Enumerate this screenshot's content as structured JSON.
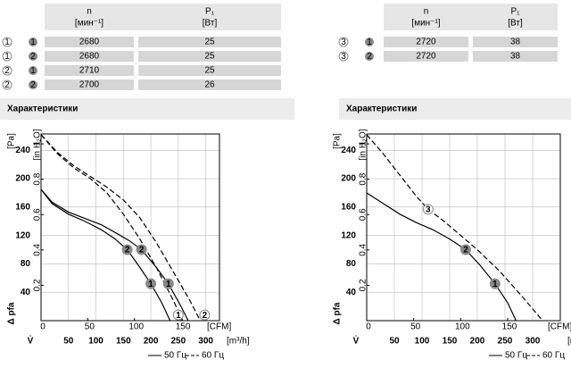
{
  "panels": [
    {
      "table": {
        "headers": [
          {
            "symbol": "n",
            "unit": "[мин⁻¹]"
          },
          {
            "symbol": "P₁",
            "unit": "[Вт]"
          }
        ],
        "rows": [
          {
            "curve": "1",
            "variant": "1",
            "n": "2680",
            "p": "25"
          },
          {
            "curve": "1",
            "variant": "2",
            "n": "2680",
            "p": "25"
          },
          {
            "curve": "2",
            "variant": "1",
            "n": "2710",
            "p": "25"
          },
          {
            "curve": "2",
            "variant": "2",
            "n": "2700",
            "p": "26"
          }
        ]
      },
      "section_title": "Характеристики"
    },
    {
      "table": {
        "headers": [
          {
            "symbol": "n",
            "unit": "[мин⁻¹]"
          },
          {
            "symbol": "P₁",
            "unit": "[Вт]"
          }
        ],
        "rows": [
          {
            "curve": "3",
            "variant": "1",
            "n": "2720",
            "p": "38"
          },
          {
            "curve": "3",
            "variant": "2",
            "n": "2720",
            "p": "38"
          }
        ]
      },
      "section_title": "Характеристики"
    }
  ],
  "chart_data": [
    {
      "type": "line",
      "xlim": [
        0,
        325
      ],
      "ylim": [
        0,
        263
      ],
      "xticks": [
        50,
        100,
        150,
        200,
        250,
        300
      ],
      "yticks": [
        40,
        80,
        120,
        160,
        200,
        240
      ],
      "x2lim": [
        0,
        191
      ],
      "x2ticks": [
        0,
        50,
        100,
        150
      ],
      "y2lim": [
        0,
        1.056
      ],
      "y2ticks": [
        0.2,
        0.4,
        0.6,
        0.8,
        1.0
      ],
      "ylabel": "[Pa]",
      "y2label": "[in H₂O]",
      "pressure_label": "Δ pfa",
      "xlabel": "V̇",
      "xunit": "[m³/h]",
      "x2unit": "[CFM]",
      "grid": true,
      "legend": [
        "50 Гц",
        "60 Гц"
      ],
      "series": [
        {
          "style": "solid",
          "color": "#000000",
          "x": [
            0,
            20,
            50,
            80,
            110,
            135,
            157,
            180,
            200,
            220,
            235
          ],
          "values": [
            185,
            165,
            150,
            140,
            128,
            115,
            100,
            75,
            52,
            25,
            0
          ]
        },
        {
          "style": "solid",
          "color": "#000000",
          "x": [
            0,
            20,
            50,
            80,
            110,
            140,
            160,
            183,
            210,
            232,
            255,
            268
          ],
          "values": [
            185,
            167,
            153,
            144,
            135,
            122,
            113,
            100,
            75,
            52,
            20,
            0
          ]
        },
        {
          "style": "dashed",
          "color": "#000000",
          "x": [
            0,
            30,
            60,
            90,
            120,
            150,
            180,
            210,
            240,
            258
          ],
          "values": [
            262,
            235,
            215,
            200,
            180,
            150,
            115,
            75,
            30,
            0
          ]
        },
        {
          "style": "dashed",
          "color": "#000000",
          "x": [
            0,
            30,
            60,
            90,
            120,
            150,
            180,
            210,
            240,
            270,
            290
          ],
          "values": [
            262,
            237,
            218,
            203,
            188,
            170,
            145,
            110,
            70,
            30,
            0
          ]
        }
      ],
      "annotations": [
        {
          "text": "2",
          "x": 157,
          "y": 100,
          "style": "filled"
        },
        {
          "text": "2",
          "x": 183,
          "y": 100,
          "style": "filled"
        },
        {
          "text": "1",
          "x": 200,
          "y": 52,
          "style": "filled"
        },
        {
          "text": "1",
          "x": 232,
          "y": 52,
          "style": "filled"
        },
        {
          "text": "1",
          "x": 250,
          "y": 8,
          "style": "outline"
        },
        {
          "text": "2",
          "x": 298,
          "y": 8,
          "style": "outline"
        }
      ]
    },
    {
      "type": "line",
      "xlim": [
        0,
        350
      ],
      "ylim": [
        0,
        263
      ],
      "xticks": [
        50,
        100,
        150,
        200,
        250,
        300
      ],
      "yticks": [
        40,
        80,
        120,
        160,
        200,
        240
      ],
      "x2lim": [
        0,
        206
      ],
      "x2ticks": [
        0,
        50,
        100,
        150
      ],
      "y2lim": [
        0,
        1.056
      ],
      "y2ticks": [
        0.2,
        0.4,
        0.6,
        0.8,
        1.0
      ],
      "ylabel": "[Pa]",
      "y2label": "[in H₂O]",
      "pressure_label": "Δ pfa",
      "xlabel": "V̇",
      "xunit": "[m³/h]",
      "x2unit": "[CFM]",
      "grid": true,
      "legend": [
        "50 Гц",
        "60 Гц"
      ],
      "series": [
        {
          "style": "solid",
          "color": "#000000",
          "x": [
            0,
            30,
            60,
            90,
            120,
            150,
            179,
            205,
            232,
            255,
            270
          ],
          "values": [
            180,
            165,
            150,
            138,
            128,
            115,
            100,
            78,
            52,
            25,
            0
          ]
        },
        {
          "style": "dashed",
          "color": "#000000",
          "x": [
            0,
            30,
            60,
            90,
            111,
            140,
            170,
            200,
            240,
            280,
            318
          ],
          "values": [
            262,
            235,
            205,
            175,
            157,
            140,
            120,
            100,
            70,
            35,
            0
          ]
        }
      ],
      "annotations": [
        {
          "text": "3",
          "x": 111,
          "y": 157,
          "style": "outline"
        },
        {
          "text": "2",
          "x": 179,
          "y": 100,
          "style": "filled"
        },
        {
          "text": "1",
          "x": 232,
          "y": 52,
          "style": "filled"
        }
      ]
    }
  ]
}
